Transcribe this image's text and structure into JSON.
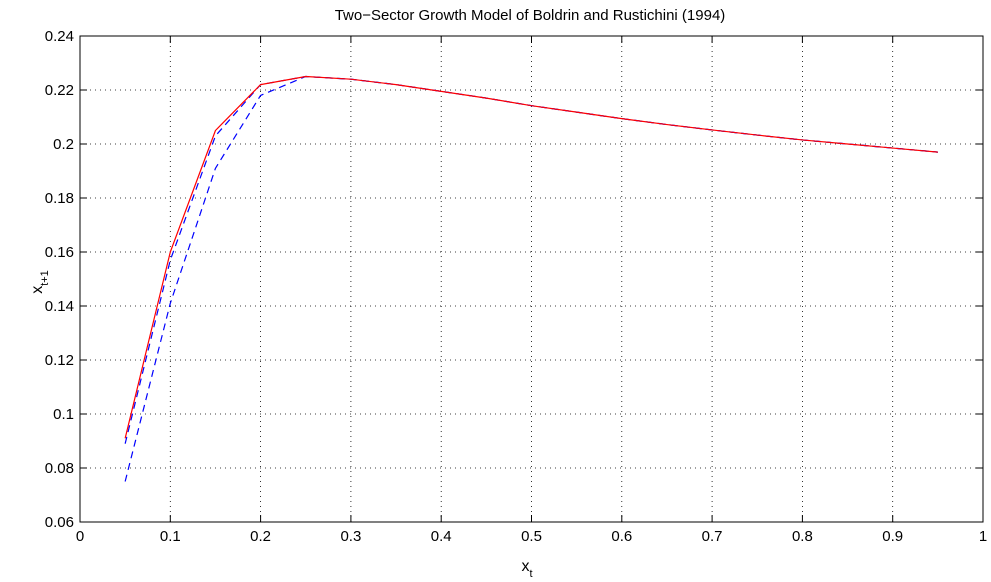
{
  "chart_data": {
    "type": "line",
    "title": "Two−Sector Growth Model of Boldrin and Rustichini (1994)",
    "xlabel": {
      "base": "x",
      "sub": "t"
    },
    "ylabel": {
      "base": "x",
      "sub": "t+1"
    },
    "xlim": [
      0,
      1
    ],
    "ylim": [
      0.06,
      0.24
    ],
    "grid": true,
    "x_ticks": [
      {
        "v": 0,
        "label": "0"
      },
      {
        "v": 0.1,
        "label": "0.1"
      },
      {
        "v": 0.2,
        "label": "0.2"
      },
      {
        "v": 0.3,
        "label": "0.3"
      },
      {
        "v": 0.4,
        "label": "0.4"
      },
      {
        "v": 0.5,
        "label": "0.5"
      },
      {
        "v": 0.6,
        "label": "0.6"
      },
      {
        "v": 0.7,
        "label": "0.7"
      },
      {
        "v": 0.8,
        "label": "0.8"
      },
      {
        "v": 0.9,
        "label": "0.9"
      },
      {
        "v": 1,
        "label": "1"
      }
    ],
    "y_ticks": [
      {
        "v": 0.06,
        "label": "0.06"
      },
      {
        "v": 0.08,
        "label": "0.08"
      },
      {
        "v": 0.1,
        "label": "0.1"
      },
      {
        "v": 0.12,
        "label": "0.12"
      },
      {
        "v": 0.14,
        "label": "0.14"
      },
      {
        "v": 0.16,
        "label": "0.16"
      },
      {
        "v": 0.18,
        "label": "0.18"
      },
      {
        "v": 0.2,
        "label": "0.2"
      },
      {
        "v": 0.22,
        "label": "0.22"
      },
      {
        "v": 0.24,
        "label": "0.24"
      }
    ],
    "series": [
      {
        "color": "#ff0000",
        "style": "solid",
        "x": [
          0.05,
          0.1,
          0.15,
          0.2,
          0.25,
          0.3,
          0.35,
          0.4,
          0.45,
          0.5,
          0.55,
          0.6,
          0.65,
          0.7,
          0.75,
          0.8,
          0.85,
          0.9,
          0.95
        ],
        "y": [
          0.091,
          0.16,
          0.205,
          0.222,
          0.225,
          0.224,
          0.222,
          0.2195,
          0.217,
          0.2142,
          0.2118,
          0.2094,
          0.2072,
          0.2052,
          0.2033,
          0.2015,
          0.2,
          0.1985,
          0.197
        ]
      },
      {
        "color": "#0000ff",
        "style": "dashed",
        "x": [
          0.05,
          0.1,
          0.15,
          0.2,
          0.25,
          0.3,
          0.35,
          0.4,
          0.45,
          0.5,
          0.55,
          0.6,
          0.65,
          0.7,
          0.75,
          0.8,
          0.85,
          0.9,
          0.95
        ],
        "y": [
          0.089,
          0.157,
          0.203,
          0.222,
          0.225,
          0.224,
          0.222,
          0.2195,
          0.217,
          0.2142,
          0.2118,
          0.2094,
          0.2072,
          0.2052,
          0.2033,
          0.2015,
          0.2,
          0.1985,
          0.197
        ]
      },
      {
        "color": "#0000ff",
        "style": "dashed",
        "x": [
          0.05,
          0.1,
          0.15,
          0.2,
          0.25,
          0.3,
          0.35,
          0.4,
          0.45,
          0.5,
          0.55,
          0.6,
          0.65,
          0.7,
          0.75,
          0.8,
          0.85,
          0.9,
          0.95
        ],
        "y": [
          0.075,
          0.141,
          0.191,
          0.218,
          0.225,
          0.224,
          0.222,
          0.2195,
          0.217,
          0.2142,
          0.2118,
          0.2094,
          0.2072,
          0.2052,
          0.2033,
          0.2015,
          0.2,
          0.1985,
          0.197
        ]
      }
    ]
  }
}
